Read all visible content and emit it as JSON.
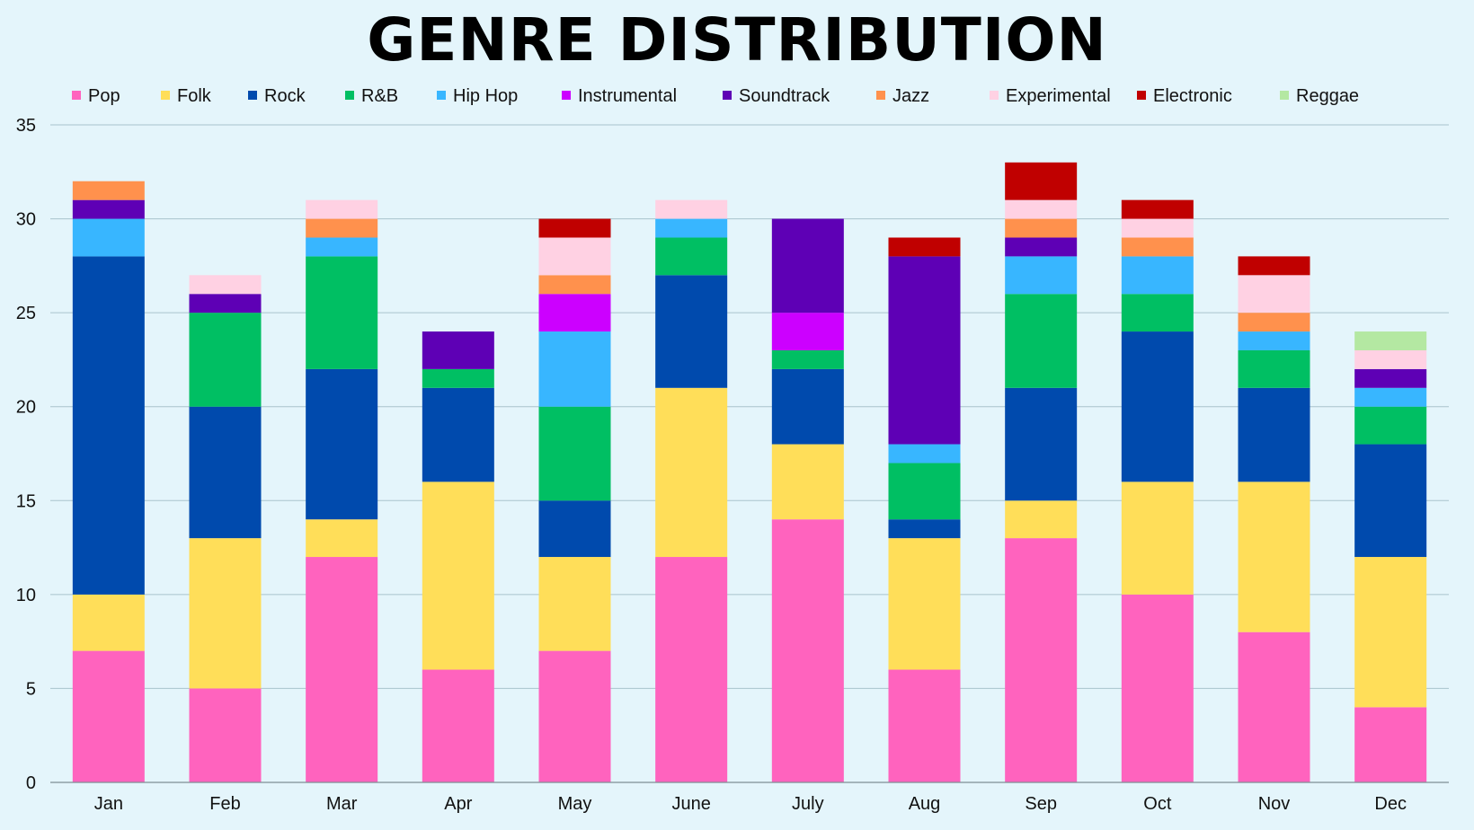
{
  "chart_data": {
    "type": "bar",
    "stacked": true,
    "title": "GENRE DISTRIBUTION",
    "xlabel": "",
    "ylabel": "",
    "ylim": [
      0,
      35
    ],
    "yticks": [
      0,
      5,
      10,
      15,
      20,
      25,
      30,
      35
    ],
    "grid": true,
    "legend_position": "top",
    "categories": [
      "Jan",
      "Feb",
      "Mar",
      "Apr",
      "May",
      "June",
      "July",
      "Aug",
      "Sep",
      "Oct",
      "Nov",
      "Dec"
    ],
    "series": [
      {
        "name": "Pop",
        "color": "#ff63be",
        "values": [
          7,
          5,
          12,
          6,
          7,
          12,
          14,
          6,
          13,
          10,
          8,
          4
        ]
      },
      {
        "name": "Folk",
        "color": "#ffde59",
        "values": [
          3,
          8,
          2,
          10,
          5,
          9,
          4,
          7,
          2,
          6,
          8,
          8
        ]
      },
      {
        "name": "Rock",
        "color": "#004aad",
        "values": [
          18,
          7,
          8,
          5,
          3,
          6,
          4,
          1,
          6,
          8,
          5,
          6
        ]
      },
      {
        "name": "R&B",
        "color": "#00bf63",
        "values": [
          0,
          5,
          6,
          1,
          5,
          2,
          1,
          3,
          5,
          2,
          2,
          2
        ]
      },
      {
        "name": "Hip Hop",
        "color": "#38b6ff",
        "values": [
          2,
          0,
          1,
          0,
          4,
          1,
          0,
          1,
          2,
          2,
          1,
          1
        ]
      },
      {
        "name": "Instrumental",
        "color": "#cc00ff",
        "values": [
          0,
          0,
          0,
          0,
          2,
          0,
          2,
          0,
          0,
          0,
          0,
          0
        ]
      },
      {
        "name": "Soundtrack",
        "color": "#5e00b5",
        "values": [
          1,
          1,
          0,
          2,
          0,
          0,
          5,
          10,
          1,
          0,
          0,
          1
        ]
      },
      {
        "name": "Jazz",
        "color": "#ff914d",
        "values": [
          1,
          0,
          1,
          0,
          1,
          0,
          0,
          0,
          1,
          1,
          1,
          0
        ]
      },
      {
        "name": "Experimental",
        "color": "#ffd1e3",
        "values": [
          0,
          1,
          1,
          0,
          2,
          1,
          0,
          0,
          1,
          1,
          2,
          1
        ]
      },
      {
        "name": "Electronic",
        "color": "#c00000",
        "values": [
          0,
          0,
          0,
          0,
          1,
          0,
          0,
          1,
          2,
          1,
          1,
          0
        ]
      },
      {
        "name": "Reggae",
        "color": "#b4e8a2",
        "values": [
          0,
          0,
          0,
          0,
          0,
          0,
          0,
          0,
          0,
          0,
          0,
          1
        ]
      }
    ]
  }
}
